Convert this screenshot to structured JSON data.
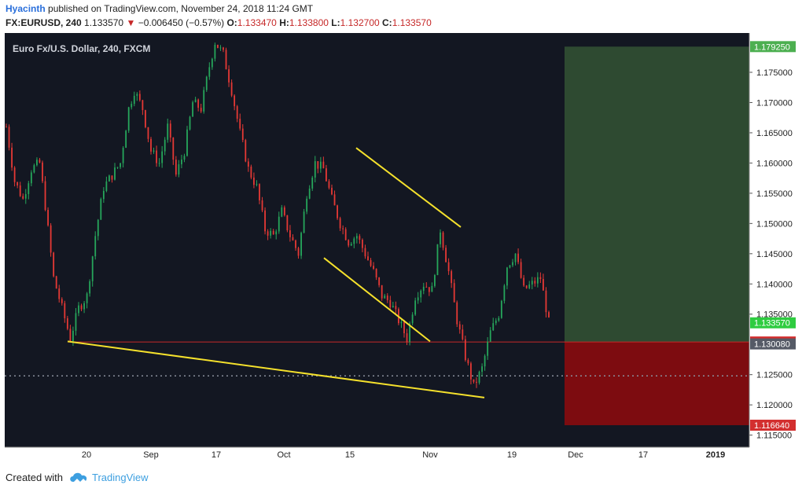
{
  "header": {
    "author": "Hyacinth",
    "published_text": " published on TradingView.com, November 24, 2018 11:24 GMT",
    "symbol": "FX:EURUSD, 240",
    "price": "1.133570",
    "change": "−0.006450 (−0.57%)",
    "open_label": "O:",
    "open": "1.133470",
    "high_label": "H:",
    "high": "1.133800",
    "low_label": "L:",
    "low": "1.132700",
    "close_label": "C:",
    "close": "1.133570"
  },
  "footer": {
    "created_with": "Created with",
    "brand": "TradingView"
  },
  "colors": {
    "background": "#131722",
    "up": "#26a65b",
    "down": "#e53935",
    "pattern_lines": "#f5e12c",
    "profit_zone": "#2e4a31",
    "loss_zone": "#7d0c10",
    "support_line": "#c62828"
  },
  "chart_data": {
    "type": "candlestick",
    "title": "Euro Fx/U.S. Dollar, 240, FXCM",
    "x_ticks": [
      "20",
      "Sep",
      "17",
      "Oct",
      "15",
      "Nov",
      "19",
      "Dec",
      "17",
      "2019"
    ],
    "y_ticks": [
      "1.175000",
      "1.170000",
      "1.165000",
      "1.160000",
      "1.155000",
      "1.150000",
      "1.145000",
      "1.140000",
      "1.135000",
      "1.125000",
      "1.120000",
      "1.115000"
    ],
    "ylim": [
      1.113,
      1.1815
    ],
    "price_path": [
      [
        0,
        1.166
      ],
      [
        3,
        1.157
      ],
      [
        6,
        1.154
      ],
      [
        9,
        1.159
      ],
      [
        12,
        1.16
      ],
      [
        14,
        1.153
      ],
      [
        17,
        1.141
      ],
      [
        20,
        1.136
      ],
      [
        23,
        1.131
      ],
      [
        26,
        1.136
      ],
      [
        29,
        1.138
      ],
      [
        32,
        1.148
      ],
      [
        35,
        1.156
      ],
      [
        38,
        1.158
      ],
      [
        41,
        1.16
      ],
      [
        44,
        1.169
      ],
      [
        46,
        1.172
      ],
      [
        49,
        1.169
      ],
      [
        52,
        1.162
      ],
      [
        55,
        1.16
      ],
      [
        58,
        1.166
      ],
      [
        61,
        1.158
      ],
      [
        64,
        1.162
      ],
      [
        67,
        1.17
      ],
      [
        70,
        1.169
      ],
      [
        73,
        1.176
      ],
      [
        75,
        1.18
      ],
      [
        78,
        1.178
      ],
      [
        81,
        1.172
      ],
      [
        84,
        1.165
      ],
      [
        87,
        1.159
      ],
      [
        90,
        1.156
      ],
      [
        93,
        1.149
      ],
      [
        96,
        1.148
      ],
      [
        99,
        1.152
      ],
      [
        102,
        1.148
      ],
      [
        105,
        1.145
      ],
      [
        108,
        1.155
      ],
      [
        111,
        1.16
      ],
      [
        114,
        1.159
      ],
      [
        117,
        1.154
      ],
      [
        120,
        1.15
      ],
      [
        123,
        1.147
      ],
      [
        126,
        1.148
      ],
      [
        129,
        1.145
      ],
      [
        132,
        1.142
      ],
      [
        135,
        1.138
      ],
      [
        138,
        1.137
      ],
      [
        141,
        1.134
      ],
      [
        144,
        1.131
      ],
      [
        147,
        1.138
      ],
      [
        150,
        1.14
      ],
      [
        153,
        1.139
      ],
      [
        156,
        1.149
      ],
      [
        159,
        1.142
      ],
      [
        162,
        1.134
      ],
      [
        165,
        1.128
      ],
      [
        168,
        1.123
      ],
      [
        171,
        1.126
      ],
      [
        174,
        1.132
      ],
      [
        177,
        1.135
      ],
      [
        180,
        1.143
      ],
      [
        183,
        1.145
      ],
      [
        186,
        1.139
      ],
      [
        189,
        1.14
      ],
      [
        192,
        1.141
      ],
      [
        195,
        1.1336
      ]
    ],
    "levels": {
      "current_price": "1.133570",
      "entry": "1.130404",
      "stop": "1.130080",
      "target": "1.179250",
      "stop_loss_low": "1.116640",
      "dotted_support": 1.1248
    },
    "pattern_lines": [
      {
        "from": [
          1.1305,
          "Aug 17"
        ],
        "to": [
          1.1212,
          "Nov 13"
        ],
        "label": "lower support"
      },
      {
        "from": [
          1.1625,
          "Oct 15"
        ],
        "to": [
          1.1494,
          "Nov 7"
        ],
        "label": "wedge upper"
      },
      {
        "from": [
          1.1443,
          "Oct 10"
        ],
        "to": [
          1.1305,
          "Nov 1"
        ],
        "label": "wedge lower"
      }
    ]
  }
}
